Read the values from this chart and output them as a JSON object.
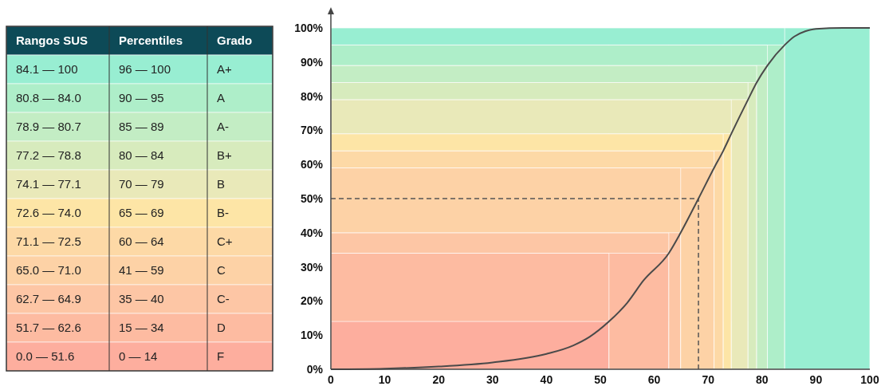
{
  "chart_data": [
    {
      "type": "other",
      "annotations": [
        "Rangos SUS",
        "Percentiles",
        "Grado",
        "84.1 — 100",
        "96 — 100",
        "A+",
        "80.8 — 84.0",
        "90 — 95",
        "A",
        "78.9 — 80.7",
        "85 — 89",
        "A-",
        "77.2 — 78.8",
        "80 — 84",
        "B+",
        "74.1 — 77.1",
        "70 — 79",
        "B",
        "72.6 — 74.0",
        "65 — 69",
        "B-",
        "71.1 — 72.5",
        "60 — 64",
        "C+",
        "65.0 — 71.0",
        "41 — 59",
        "C",
        "62.7 — 64.9",
        "35 — 40",
        "C-",
        "51.7 — 62.6",
        "15 — 34",
        "D",
        "0.0 — 51.6",
        "0 — 14",
        "F"
      ],
      "colors": [
        "#0d4a57",
        "#98eed2",
        "#aeeec9",
        "#c3edc4",
        "#d7ebbd",
        "#e9e9b9",
        "#fde5a6",
        "#fdd9a6",
        "#fdd2a6",
        "#fdc6a5",
        "#fdbba1",
        "#fdae9e"
      ]
    },
    {
      "type": "line",
      "xlim": [
        0,
        100
      ],
      "ylim": [
        0,
        100
      ],
      "xticks": [
        0,
        10,
        20,
        30,
        40,
        50,
        60,
        70,
        80,
        90,
        100
      ],
      "yticks": [
        {
          "value": 0,
          "label": "0%"
        },
        {
          "value": 10,
          "label": "10%"
        },
        {
          "value": 20,
          "label": "20%"
        },
        {
          "value": 30,
          "label": "30%"
        },
        {
          "value": 40,
          "label": "40%"
        },
        {
          "value": 50,
          "label": "50%"
        },
        {
          "value": 60,
          "label": "60%"
        },
        {
          "value": 70,
          "label": "70%"
        },
        {
          "value": 80,
          "label": "80%"
        },
        {
          "value": 90,
          "label": "90%"
        },
        {
          "value": 100,
          "label": "100%"
        }
      ],
      "x": [
        0,
        10,
        20,
        30,
        40,
        45,
        48,
        51.6,
        55,
        58,
        62.7,
        64.9,
        68.2,
        71.1,
        72.8,
        74.3,
        77.4,
        79,
        81,
        84.2,
        86,
        88,
        90,
        95,
        100
      ],
      "series": [
        {
          "color": "#4a4a4a",
          "values": [
            0,
            0.2,
            0.8,
            2,
            4.5,
            7,
            9.5,
            14,
            19.5,
            26,
            34,
            40,
            50,
            59,
            64,
            69,
            79,
            84,
            89,
            95,
            97.5,
            99,
            99.7,
            100,
            100
          ]
        }
      ],
      "bands": [
        {
          "axis": "x",
          "from": 0,
          "to": 51.6,
          "color": "#fdae9e"
        },
        {
          "axis": "y",
          "from": 14,
          "to": 34,
          "color": "#fdbba1"
        },
        {
          "axis": "x",
          "from": 51.6,
          "to": 62.7,
          "color": "#fdbba1"
        },
        {
          "axis": "y",
          "from": 34,
          "to": 40,
          "color": "#fdc6a5"
        },
        {
          "axis": "x",
          "from": 62.7,
          "to": 64.9,
          "color": "#fdc6a5"
        },
        {
          "axis": "y",
          "from": 40,
          "to": 59,
          "color": "#fdd2a6"
        },
        {
          "axis": "x",
          "from": 64.9,
          "to": 71.1,
          "color": "#fdd2a6"
        },
        {
          "axis": "y",
          "from": 59,
          "to": 64,
          "color": "#fdd9a6"
        },
        {
          "axis": "x",
          "from": 71.1,
          "to": 72.8,
          "color": "#fdd9a6"
        },
        {
          "axis": "y",
          "from": 64,
          "to": 69,
          "color": "#fde5a6"
        },
        {
          "axis": "x",
          "from": 72.8,
          "to": 74.3,
          "color": "#fde5a6"
        },
        {
          "axis": "y",
          "from": 69,
          "to": 79,
          "color": "#e9e9b9"
        },
        {
          "axis": "x",
          "from": 74.3,
          "to": 77.4,
          "color": "#e9e9b9"
        },
        {
          "axis": "y",
          "from": 79,
          "to": 84,
          "color": "#d7ebbd"
        },
        {
          "axis": "x",
          "from": 77.4,
          "to": 79,
          "color": "#d7ebbd"
        },
        {
          "axis": "y",
          "from": 84,
          "to": 89,
          "color": "#c3edc4"
        },
        {
          "axis": "x",
          "from": 79,
          "to": 81,
          "color": "#c3edc4"
        },
        {
          "axis": "y",
          "from": 89,
          "to": 95,
          "color": "#aeeec9"
        },
        {
          "axis": "x",
          "from": 81,
          "to": 84.2,
          "color": "#aeeec9"
        },
        {
          "axis": "y",
          "from": 95,
          "to": 100,
          "color": "#98eed2"
        },
        {
          "axis": "x",
          "from": 84.2,
          "to": 100,
          "color": "#98eed2"
        }
      ],
      "ref_lines": [
        {
          "axis": "x",
          "value": 68.2,
          "line_style": "dashed",
          "color": "#555555"
        },
        {
          "axis": "y",
          "value": 50,
          "line_style": "dashed",
          "color": "#555555"
        }
      ],
      "grid": false,
      "marker": "none",
      "line_style": "solid"
    }
  ]
}
